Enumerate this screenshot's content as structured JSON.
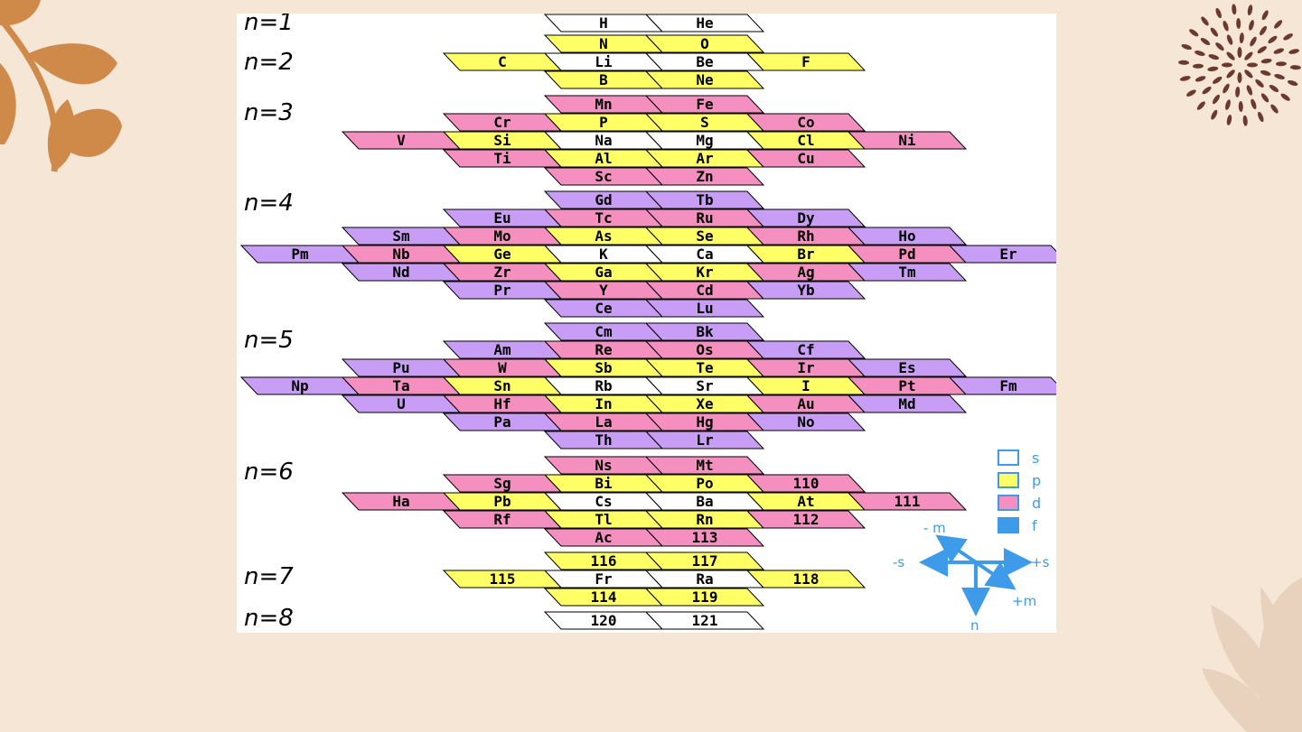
{
  "colors": {
    "background": "#f6e6d6",
    "s": "#ffffff",
    "p": "#ffff66",
    "d": "#f58fc0",
    "f": "#c89df5",
    "arrows": "#3d9be9",
    "leaf_orange": "#cf8a4a",
    "dots_brown": "#6b3a2c",
    "leaf_beige": "#e8d2bd"
  },
  "shell_labels": [
    "n=1",
    "n=2",
    "n=3",
    "n=4",
    "n=5",
    "n=6",
    "n=7",
    "n=8"
  ],
  "legend": [
    {
      "label": "s",
      "orbital": "s"
    },
    {
      "label": "p",
      "orbital": "p"
    },
    {
      "label": "d",
      "orbital": "d"
    },
    {
      "label": "f",
      "orbital": "f"
    }
  ],
  "axes": {
    "minus_m": "- m",
    "minus_s": "-s",
    "plus_s": "+s",
    "plus_m": "+m",
    "n": "n"
  },
  "rows": [
    {
      "shell": "n=1",
      "cells": [
        {
          "s": "H",
          "t": "s"
        },
        {
          "s": "He",
          "t": "s"
        }
      ]
    },
    {
      "shell": "n=2",
      "cells": [
        {
          "s": "N",
          "t": "p"
        },
        {
          "s": "O",
          "t": "p"
        }
      ]
    },
    {
      "shell": "n=2",
      "cells": [
        {
          "s": "C",
          "t": "p"
        },
        {
          "s": "Li",
          "t": "s"
        },
        {
          "s": "Be",
          "t": "s"
        },
        {
          "s": "F",
          "t": "p"
        }
      ]
    },
    {
      "shell": "n=2",
      "cells": [
        {
          "s": "B",
          "t": "p"
        },
        {
          "s": "Ne",
          "t": "p"
        }
      ]
    },
    {
      "shell": "n=3",
      "cells": [
        {
          "s": "Mn",
          "t": "d"
        },
        {
          "s": "Fe",
          "t": "d"
        }
      ]
    },
    {
      "shell": "n=3",
      "cells": [
        {
          "s": "Cr",
          "t": "d"
        },
        {
          "s": "P",
          "t": "p"
        },
        {
          "s": "S",
          "t": "p"
        },
        {
          "s": "Co",
          "t": "d"
        }
      ]
    },
    {
      "shell": "n=3",
      "cells": [
        {
          "s": "V",
          "t": "d"
        },
        {
          "s": "Si",
          "t": "p"
        },
        {
          "s": "Na",
          "t": "s"
        },
        {
          "s": "Mg",
          "t": "s"
        },
        {
          "s": "Cl",
          "t": "p"
        },
        {
          "s": "Ni",
          "t": "d"
        }
      ]
    },
    {
      "shell": "n=3",
      "cells": [
        {
          "s": "Ti",
          "t": "d"
        },
        {
          "s": "Al",
          "t": "p"
        },
        {
          "s": "Ar",
          "t": "p"
        },
        {
          "s": "Cu",
          "t": "d"
        }
      ]
    },
    {
      "shell": "n=3",
      "cells": [
        {
          "s": "Sc",
          "t": "d"
        },
        {
          "s": "Zn",
          "t": "d"
        }
      ]
    },
    {
      "shell": "n=4",
      "cells": [
        {
          "s": "Gd",
          "t": "f"
        },
        {
          "s": "Tb",
          "t": "f"
        }
      ]
    },
    {
      "shell": "n=4",
      "cells": [
        {
          "s": "Eu",
          "t": "f"
        },
        {
          "s": "Tc",
          "t": "d"
        },
        {
          "s": "Ru",
          "t": "d"
        },
        {
          "s": "Dy",
          "t": "f"
        }
      ]
    },
    {
      "shell": "n=4",
      "cells": [
        {
          "s": "Sm",
          "t": "f"
        },
        {
          "s": "Mo",
          "t": "d"
        },
        {
          "s": "As",
          "t": "p"
        },
        {
          "s": "Se",
          "t": "p"
        },
        {
          "s": "Rh",
          "t": "d"
        },
        {
          "s": "Ho",
          "t": "f"
        }
      ]
    },
    {
      "shell": "n=4",
      "cells": [
        {
          "s": "Pm",
          "t": "f"
        },
        {
          "s": "Nb",
          "t": "d"
        },
        {
          "s": "Ge",
          "t": "p"
        },
        {
          "s": "K",
          "t": "s"
        },
        {
          "s": "Ca",
          "t": "s"
        },
        {
          "s": "Br",
          "t": "p"
        },
        {
          "s": "Pd",
          "t": "d"
        },
        {
          "s": "Er",
          "t": "f"
        }
      ]
    },
    {
      "shell": "n=4",
      "cells": [
        {
          "s": "Nd",
          "t": "f"
        },
        {
          "s": "Zr",
          "t": "d"
        },
        {
          "s": "Ga",
          "t": "p"
        },
        {
          "s": "Kr",
          "t": "p"
        },
        {
          "s": "Ag",
          "t": "d"
        },
        {
          "s": "Tm",
          "t": "f"
        }
      ]
    },
    {
      "shell": "n=4",
      "cells": [
        {
          "s": "Pr",
          "t": "f"
        },
        {
          "s": "Y",
          "t": "d"
        },
        {
          "s": "Cd",
          "t": "d"
        },
        {
          "s": "Yb",
          "t": "f"
        }
      ]
    },
    {
      "shell": "n=4",
      "cells": [
        {
          "s": "Ce",
          "t": "f"
        },
        {
          "s": "Lu",
          "t": "f"
        }
      ]
    },
    {
      "shell": "n=5",
      "cells": [
        {
          "s": "Cm",
          "t": "f"
        },
        {
          "s": "Bk",
          "t": "f"
        }
      ]
    },
    {
      "shell": "n=5",
      "cells": [
        {
          "s": "Am",
          "t": "f"
        },
        {
          "s": "Re",
          "t": "d"
        },
        {
          "s": "Os",
          "t": "d"
        },
        {
          "s": "Cf",
          "t": "f"
        }
      ]
    },
    {
      "shell": "n=5",
      "cells": [
        {
          "s": "Pu",
          "t": "f"
        },
        {
          "s": "W",
          "t": "d"
        },
        {
          "s": "Sb",
          "t": "p"
        },
        {
          "s": "Te",
          "t": "p"
        },
        {
          "s": "Ir",
          "t": "d"
        },
        {
          "s": "Es",
          "t": "f"
        }
      ]
    },
    {
      "shell": "n=5",
      "cells": [
        {
          "s": "Np",
          "t": "f"
        },
        {
          "s": "Ta",
          "t": "d"
        },
        {
          "s": "Sn",
          "t": "p"
        },
        {
          "s": "Rb",
          "t": "s"
        },
        {
          "s": "Sr",
          "t": "s"
        },
        {
          "s": "I",
          "t": "p"
        },
        {
          "s": "Pt",
          "t": "d"
        },
        {
          "s": "Fm",
          "t": "f"
        }
      ]
    },
    {
      "shell": "n=5",
      "cells": [
        {
          "s": "U",
          "t": "f"
        },
        {
          "s": "Hf",
          "t": "d"
        },
        {
          "s": "In",
          "t": "p"
        },
        {
          "s": "Xe",
          "t": "p"
        },
        {
          "s": "Au",
          "t": "d"
        },
        {
          "s": "Md",
          "t": "f"
        }
      ]
    },
    {
      "shell": "n=5",
      "cells": [
        {
          "s": "Pa",
          "t": "f"
        },
        {
          "s": "La",
          "t": "d"
        },
        {
          "s": "Hg",
          "t": "d"
        },
        {
          "s": "No",
          "t": "f"
        }
      ]
    },
    {
      "shell": "n=5",
      "cells": [
        {
          "s": "Th",
          "t": "f"
        },
        {
          "s": "Lr",
          "t": "f"
        }
      ]
    },
    {
      "shell": "n=6",
      "cells": [
        {
          "s": "Ns",
          "t": "d"
        },
        {
          "s": "Mt",
          "t": "d"
        }
      ]
    },
    {
      "shell": "n=6",
      "cells": [
        {
          "s": "Sg",
          "t": "d"
        },
        {
          "s": "Bi",
          "t": "p"
        },
        {
          "s": "Po",
          "t": "p"
        },
        {
          "s": "110",
          "t": "d"
        }
      ]
    },
    {
      "shell": "n=6",
      "cells": [
        {
          "s": "Ha",
          "t": "d"
        },
        {
          "s": "Pb",
          "t": "p"
        },
        {
          "s": "Cs",
          "t": "s"
        },
        {
          "s": "Ba",
          "t": "s"
        },
        {
          "s": "At",
          "t": "p"
        },
        {
          "s": "111",
          "t": "d"
        }
      ]
    },
    {
      "shell": "n=6",
      "cells": [
        {
          "s": "Rf",
          "t": "d"
        },
        {
          "s": "Tl",
          "t": "p"
        },
        {
          "s": "Rn",
          "t": "p"
        },
        {
          "s": "112",
          "t": "d"
        }
      ]
    },
    {
      "shell": "n=6",
      "cells": [
        {
          "s": "Ac",
          "t": "d"
        },
        {
          "s": "113",
          "t": "d"
        }
      ]
    },
    {
      "shell": "n=7",
      "cells": [
        {
          "s": "116",
          "t": "p"
        },
        {
          "s": "117",
          "t": "p"
        }
      ]
    },
    {
      "shell": "n=7",
      "cells": [
        {
          "s": "115",
          "t": "p"
        },
        {
          "s": "Fr",
          "t": "s"
        },
        {
          "s": "Ra",
          "t": "s"
        },
        {
          "s": "118",
          "t": "p"
        }
      ]
    },
    {
      "shell": "n=7",
      "cells": [
        {
          "s": "114",
          "t": "p"
        },
        {
          "s": "119",
          "t": "p"
        }
      ]
    },
    {
      "shell": "n=8",
      "cells": [
        {
          "s": "120",
          "t": "s"
        },
        {
          "s": "121",
          "t": "s"
        }
      ]
    }
  ]
}
